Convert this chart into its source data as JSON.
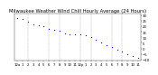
{
  "title": "Milwaukee Weather Wind Chill Hourly Average (24 Hours)",
  "x_values": [
    0,
    1,
    2,
    3,
    4,
    5,
    6,
    7,
    8,
    9,
    10,
    11,
    12,
    13,
    14,
    15,
    16,
    17,
    18,
    19,
    20,
    21,
    22,
    23
  ],
  "y_values": [
    28,
    27,
    24,
    22,
    21,
    20,
    18,
    17,
    16,
    14,
    13,
    13,
    13,
    12,
    10,
    8,
    5,
    3,
    1,
    -1,
    -3,
    -5,
    -7,
    -9
  ],
  "dot_color": "#0000ff",
  "bg_color": "#ffffff",
  "grid_color": "#888888",
  "title_color": "#000000",
  "tick_color": "#000000",
  "xlim": [
    -0.5,
    23.5
  ],
  "title_fontsize": 3.8,
  "tick_fontsize": 2.8,
  "y_tick_step": 5
}
